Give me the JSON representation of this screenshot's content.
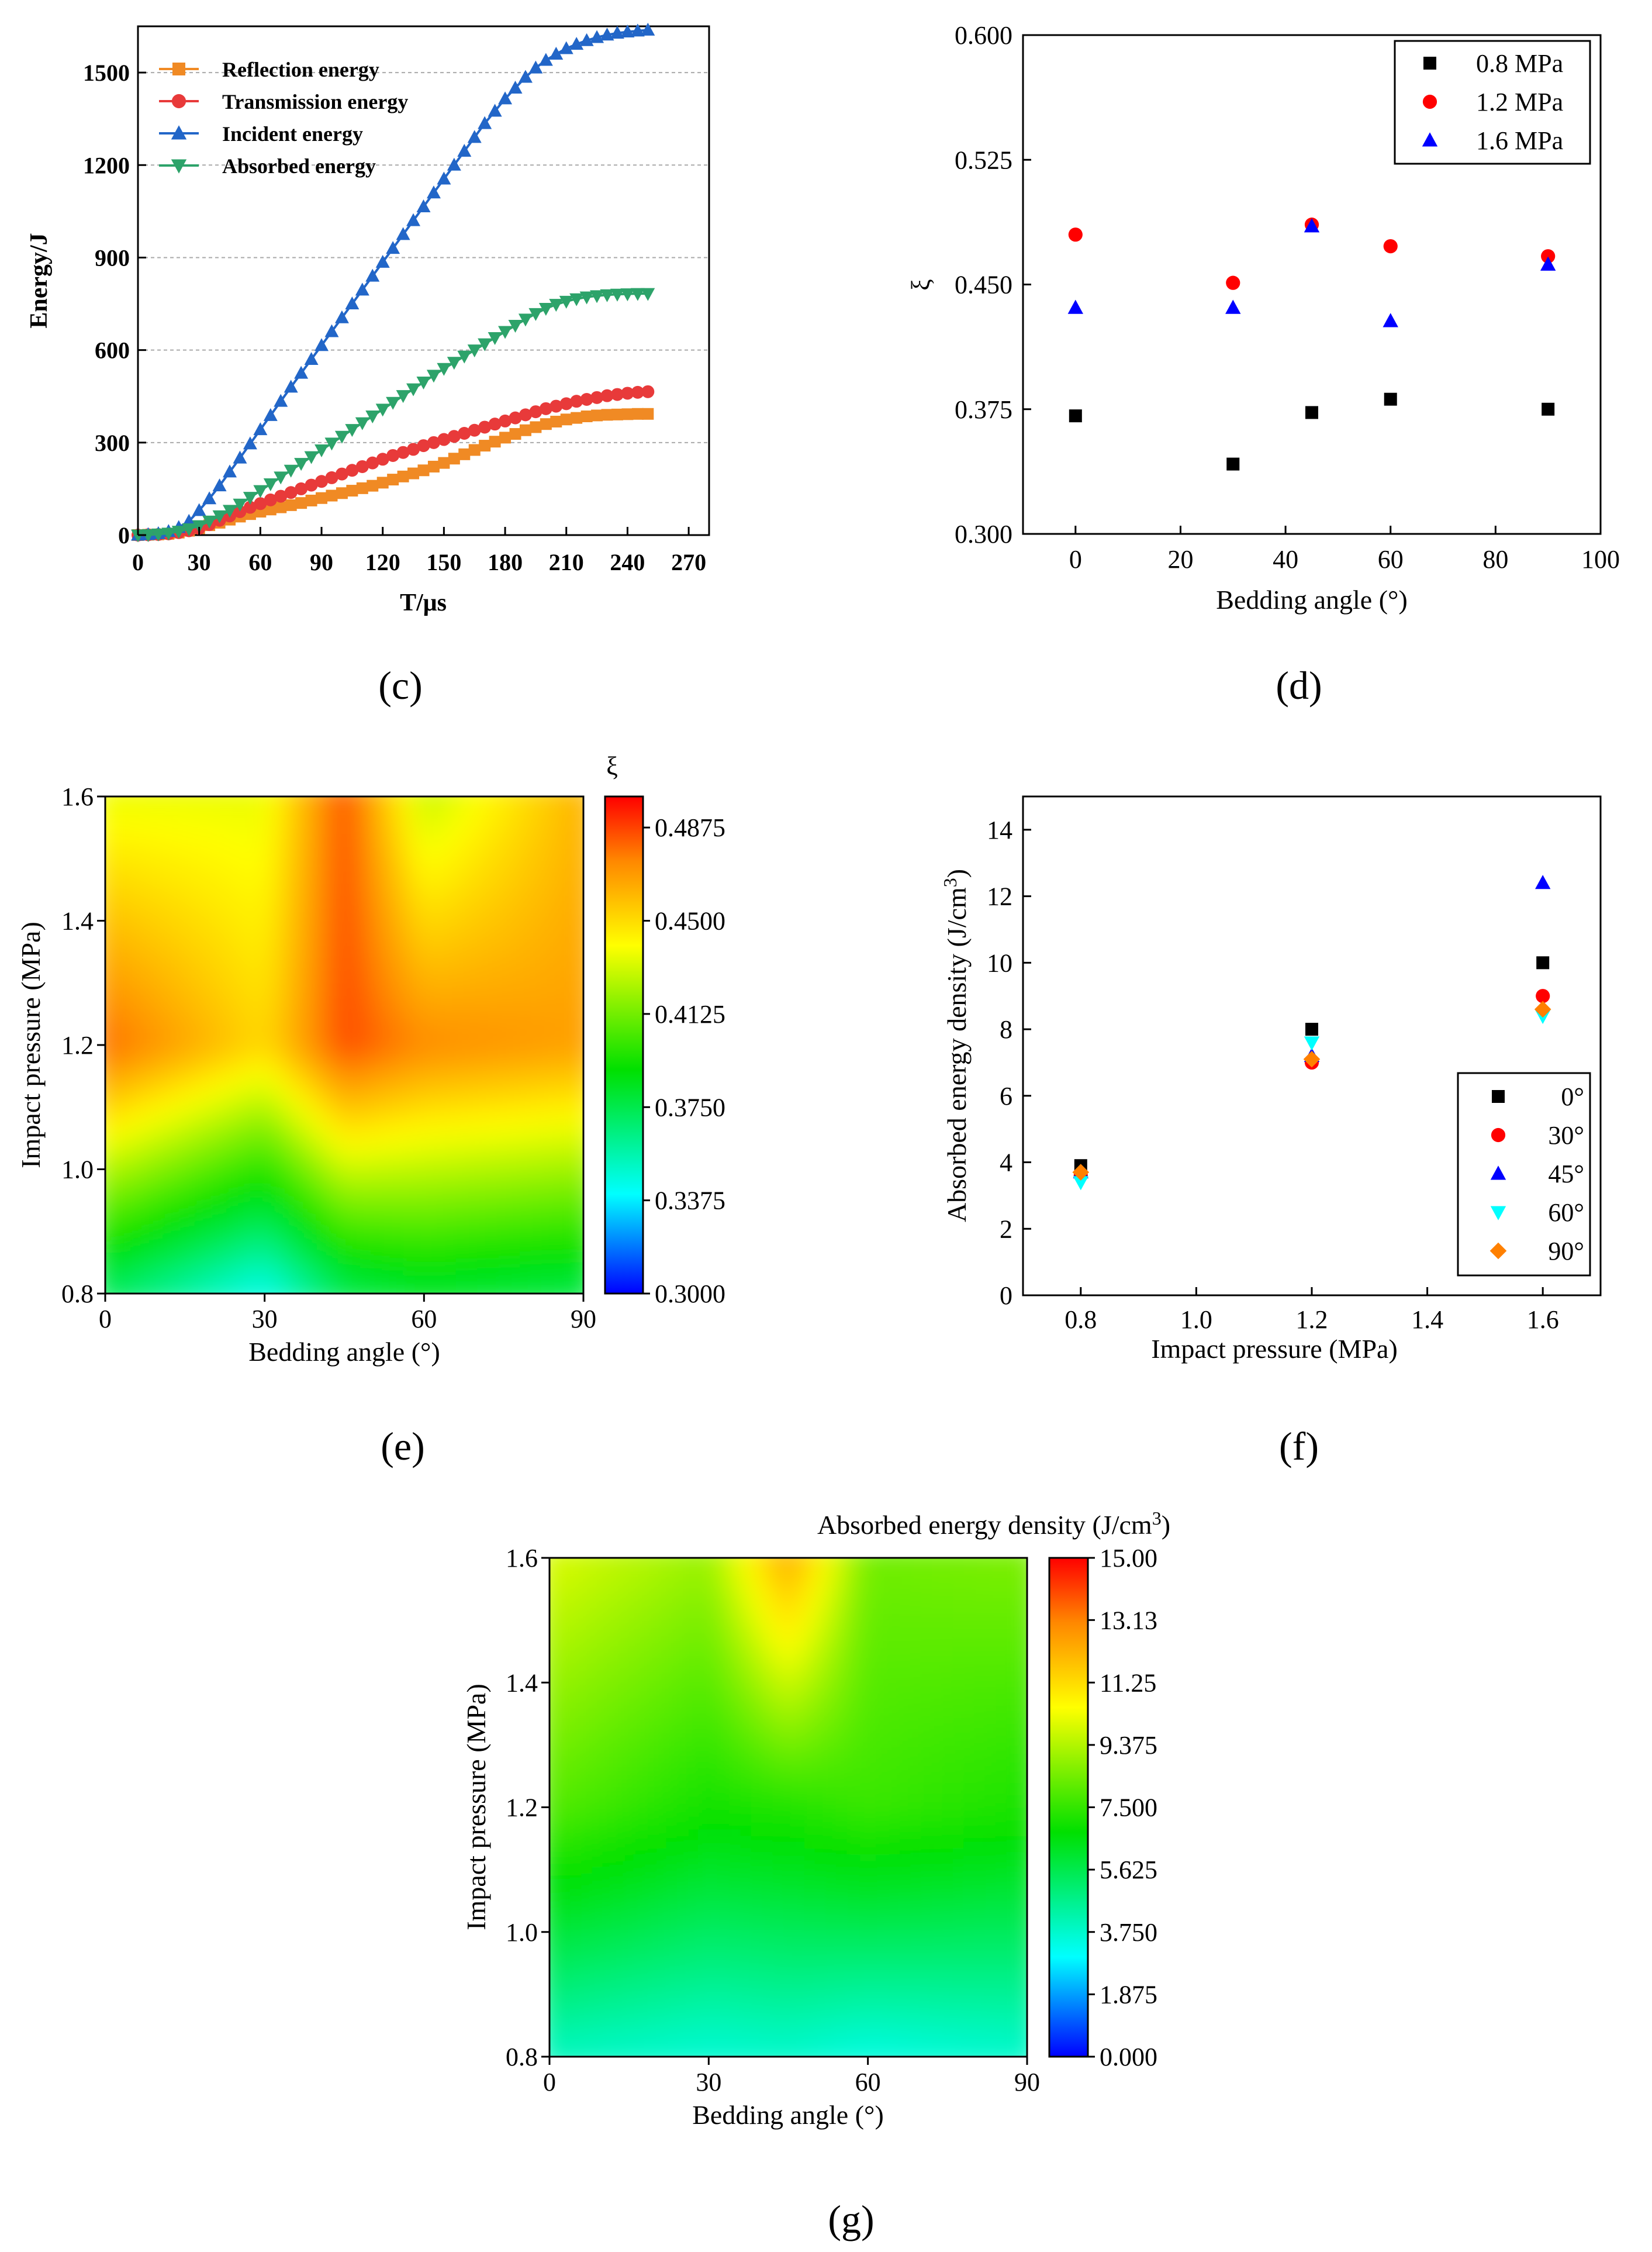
{
  "chart_data": [
    {
      "panel": "c",
      "type": "line",
      "panel_label": "(c)",
      "xlabel": "T/μs",
      "ylabel": "Energy/J",
      "xlim": [
        0,
        270
      ],
      "ylim": [
        0,
        1650
      ],
      "x_ticks": [
        0,
        30,
        60,
        90,
        120,
        150,
        180,
        210,
        240,
        270
      ],
      "y_ticks": [
        0,
        300,
        600,
        900,
        1200,
        1500
      ],
      "grid": "horizontal dashed",
      "legend_position": "top-left",
      "x": [
        0,
        5,
        10,
        15,
        20,
        25,
        30,
        35,
        40,
        45,
        50,
        55,
        60,
        65,
        70,
        75,
        80,
        85,
        90,
        95,
        100,
        105,
        110,
        115,
        120,
        125,
        130,
        135,
        140,
        145,
        150,
        155,
        160,
        165,
        170,
        175,
        180,
        185,
        190,
        195,
        200,
        205,
        210,
        215,
        220,
        225,
        230,
        235,
        240,
        245,
        250
      ],
      "series": [
        {
          "name": "Reflection energy",
          "color": "#f08a24",
          "marker": "square",
          "values": [
            0,
            1,
            2,
            4,
            8,
            14,
            22,
            32,
            40,
            50,
            60,
            68,
            76,
            83,
            90,
            97,
            104,
            112,
            120,
            128,
            136,
            144,
            152,
            160,
            170,
            180,
            190,
            200,
            210,
            222,
            234,
            248,
            262,
            276,
            290,
            303,
            316,
            328,
            340,
            350,
            360,
            368,
            375,
            380,
            385,
            388,
            390,
            391,
            392,
            393,
            393
          ]
        },
        {
          "name": "Transmission energy",
          "color": "#e83a3a",
          "marker": "circle",
          "values": [
            0,
            1,
            2,
            4,
            8,
            14,
            22,
            34,
            48,
            62,
            76,
            90,
            102,
            114,
            126,
            138,
            150,
            162,
            174,
            186,
            198,
            210,
            222,
            234,
            246,
            258,
            268,
            278,
            290,
            300,
            310,
            320,
            330,
            340,
            350,
            360,
            370,
            380,
            390,
            400,
            410,
            418,
            426,
            434,
            440,
            446,
            452,
            456,
            460,
            463,
            465
          ]
        },
        {
          "name": "Incident energy",
          "color": "#2266c8",
          "marker": "triangle-up",
          "values": [
            0,
            2,
            5,
            12,
            25,
            45,
            80,
            118,
            160,
            205,
            250,
            296,
            342,
            388,
            434,
            480,
            525,
            570,
            615,
            660,
            705,
            750,
            795,
            840,
            885,
            930,
            975,
            1020,
            1065,
            1110,
            1155,
            1200,
            1245,
            1290,
            1335,
            1375,
            1415,
            1450,
            1485,
            1515,
            1540,
            1560,
            1578,
            1592,
            1604,
            1614,
            1622,
            1628,
            1632,
            1635,
            1638
          ]
        },
        {
          "name": "Absorbed energy",
          "color": "#2da36a",
          "marker": "triangle-down",
          "values": [
            0,
            1,
            3,
            6,
            12,
            20,
            30,
            45,
            62,
            80,
            100,
            122,
            144,
            166,
            188,
            210,
            232,
            254,
            276,
            298,
            320,
            342,
            364,
            386,
            408,
            430,
            452,
            474,
            496,
            518,
            540,
            560,
            580,
            600,
            620,
            640,
            660,
            680,
            700,
            718,
            735,
            748,
            758,
            766,
            772,
            776,
            779,
            781,
            782,
            783,
            783
          ]
        }
      ]
    },
    {
      "panel": "d",
      "type": "scatter",
      "panel_label": "(d)",
      "xlabel": "Bedding angle (°)",
      "ylabel": "ξ",
      "xlim": [
        -10,
        100
      ],
      "ylim": [
        0.3,
        0.6
      ],
      "x_ticks": [
        0,
        20,
        40,
        60,
        80,
        100
      ],
      "y_ticks": [
        "0.300",
        "0.375",
        "0.450",
        "0.525",
        "0.600"
      ],
      "legend_position": "top-right",
      "x": [
        0,
        30,
        45,
        60,
        90
      ],
      "series": [
        {
          "name": "0.8 MPa",
          "color": "#000000",
          "marker": "square",
          "values": [
            0.371,
            0.342,
            0.373,
            0.381,
            0.375
          ]
        },
        {
          "name": "1.2 MPa",
          "color": "#ff0000",
          "marker": "circle",
          "values": [
            0.48,
            0.451,
            0.486,
            0.473,
            0.467
          ]
        },
        {
          "name": "1.6 MPa",
          "color": "#0000ff",
          "marker": "triangle-up",
          "values": [
            0.436,
            0.436,
            0.485,
            0.428,
            0.462
          ]
        }
      ]
    },
    {
      "panel": "e",
      "type": "heatmap",
      "panel_label": "(e)",
      "xlabel": "Bedding angle (°)",
      "ylabel": "Impact pressure (MPa)",
      "colorbar_title": "ξ",
      "xlim": [
        0,
        90
      ],
      "ylim": [
        0.8,
        1.6
      ],
      "x_ticks": [
        0,
        30,
        60,
        90
      ],
      "y_ticks": [
        "0.8",
        "1.0",
        "1.2",
        "1.4",
        "1.6"
      ],
      "colorbar_range": [
        0.3,
        0.5
      ],
      "colorbar_ticks": [
        "0.3000",
        "0.3375",
        "0.3750",
        "0.4125",
        "0.4500",
        "0.4875"
      ],
      "grid_x": [
        0,
        30,
        45,
        60,
        90
      ],
      "grid_y": [
        0.8,
        1.2,
        1.6
      ],
      "z": [
        [
          0.371,
          0.342,
          0.373,
          0.381,
          0.375
        ],
        [
          0.48,
          0.451,
          0.486,
          0.473,
          0.467
        ],
        [
          0.436,
          0.436,
          0.485,
          0.428,
          0.462
        ]
      ]
    },
    {
      "panel": "f",
      "type": "scatter",
      "panel_label": "(f)",
      "xlabel": "Impact pressure (MPa)",
      "ylabel_main": "Absorbed energy density (J/cm",
      "ylabel_sup": "3",
      "ylabel_close": ")",
      "xlim": [
        0.7,
        1.7
      ],
      "ylim": [
        0,
        15
      ],
      "x_ticks": [
        "0.8",
        "1.0",
        "1.2",
        "1.4",
        "1.6"
      ],
      "y_ticks": [
        "0",
        "2",
        "4",
        "6",
        "8",
        "10",
        "12",
        "14"
      ],
      "legend_position": "bottom-right",
      "x": [
        0.8,
        1.2,
        1.6
      ],
      "series": [
        {
          "name": "0°",
          "color": "#000000",
          "marker": "square",
          "values": [
            3.9,
            8.0,
            10.0
          ]
        },
        {
          "name": "30°",
          "color": "#ff0000",
          "marker": "circle",
          "values": [
            3.6,
            7.0,
            9.0
          ]
        },
        {
          "name": "45°",
          "color": "#0000ff",
          "marker": "triangle-up",
          "values": [
            3.7,
            7.2,
            12.4
          ]
        },
        {
          "name": "60°",
          "color": "#00ffff",
          "marker": "triangle-down",
          "values": [
            3.4,
            7.6,
            8.4
          ]
        },
        {
          "name": "90°",
          "color": "#ff8000",
          "marker": "diamond",
          "values": [
            3.7,
            7.1,
            8.6
          ]
        }
      ]
    },
    {
      "panel": "g",
      "type": "heatmap",
      "panel_label": "(g)",
      "xlabel": "Bedding angle (°)",
      "ylabel": "Impact pressure (MPa)",
      "colorbar_title_main": "Absorbed energy density (J/cm",
      "colorbar_title_sup": "3",
      "colorbar_title_close": ")",
      "xlim": [
        0,
        90
      ],
      "ylim": [
        0.8,
        1.6
      ],
      "x_ticks": [
        0,
        30,
        60,
        90
      ],
      "y_ticks": [
        "0.8",
        "1.0",
        "1.2",
        "1.4",
        "1.6"
      ],
      "colorbar_range": [
        0,
        15
      ],
      "colorbar_ticks": [
        "0.000",
        "1.875",
        "3.750",
        "5.625",
        "7.500",
        "9.375",
        "11.25",
        "13.13",
        "15.00"
      ],
      "grid_x": [
        0,
        30,
        45,
        60,
        90
      ],
      "grid_y": [
        0.8,
        1.2,
        1.6
      ],
      "z": [
        [
          3.9,
          3.6,
          3.7,
          3.4,
          3.7
        ],
        [
          8.0,
          7.0,
          7.2,
          7.6,
          7.1
        ],
        [
          10.0,
          9.0,
          12.4,
          8.4,
          8.6
        ]
      ]
    }
  ]
}
